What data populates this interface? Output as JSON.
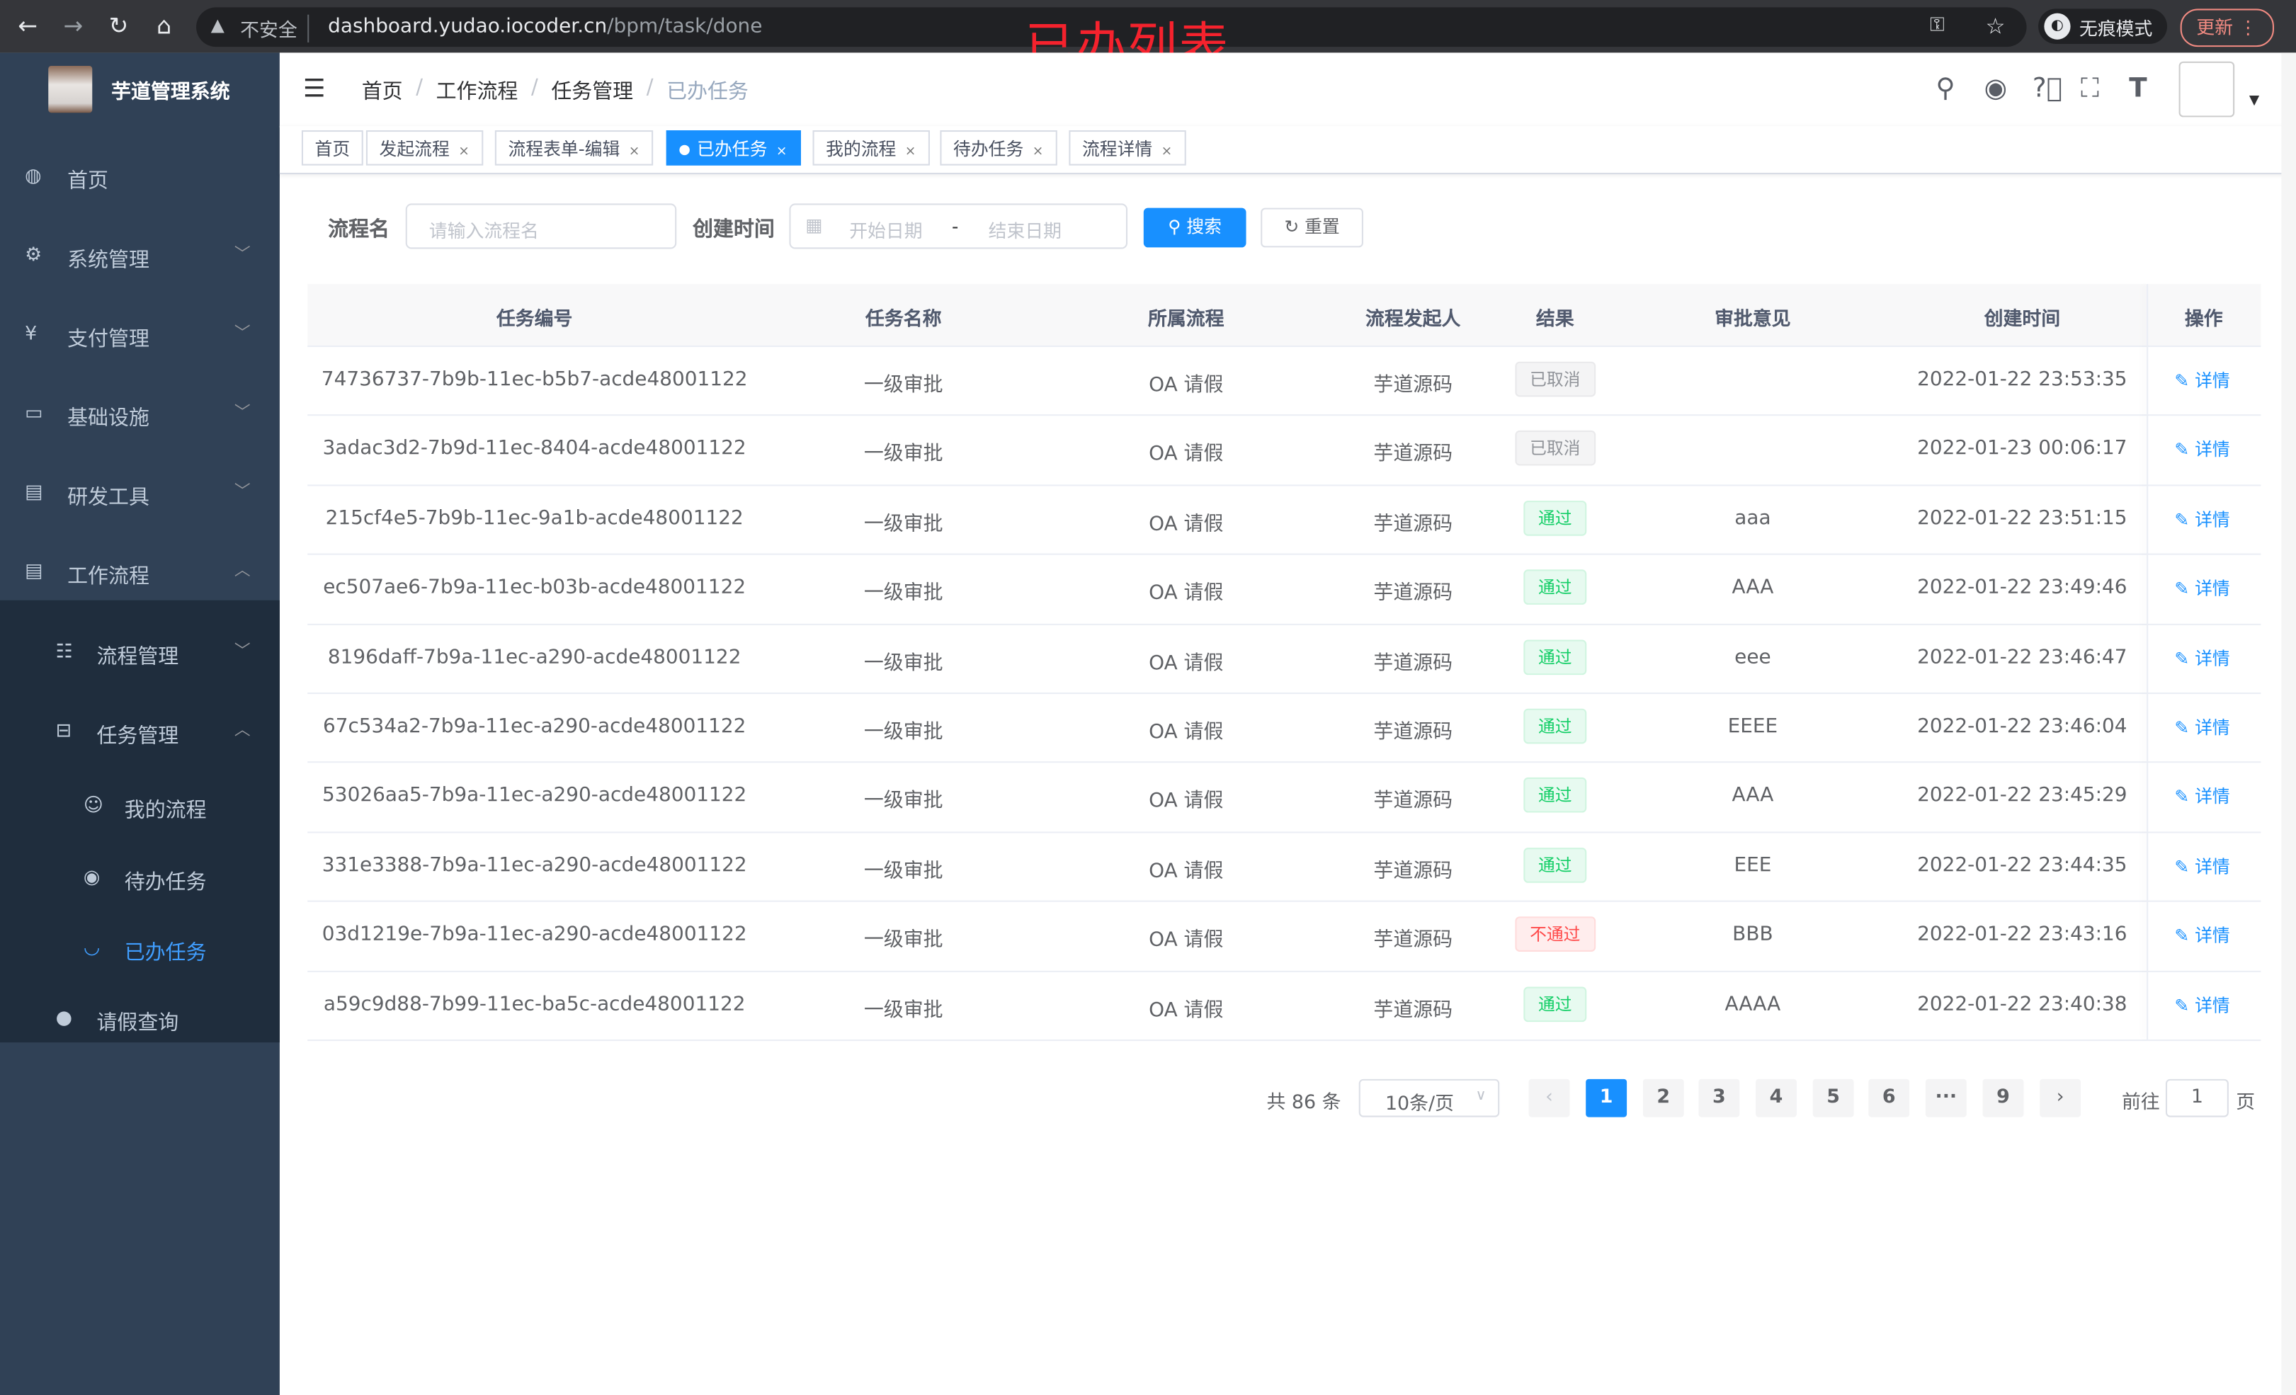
{
  "browser": {
    "security_label": "不安全",
    "url_host": "dashboard.yudao.iocoder.cn",
    "url_path": "/bpm/task/done",
    "incognito_label": "无痕模式",
    "update_label": "更新"
  },
  "annotation": "已办列表",
  "sidebar": {
    "brand": "芋道管理系统",
    "items": [
      {
        "label": "首页",
        "icon": "dashboard-icon"
      },
      {
        "label": "系统管理",
        "icon": "gear-icon"
      },
      {
        "label": "支付管理",
        "icon": "yen-icon"
      },
      {
        "label": "基础设施",
        "icon": "monitor-icon"
      },
      {
        "label": "研发工具",
        "icon": "toolbox-icon"
      },
      {
        "label": "工作流程",
        "icon": "toolbox-icon"
      }
    ],
    "sub_items": [
      {
        "label": "流程管理",
        "icon": "list-icon"
      },
      {
        "label": "任务管理",
        "icon": "tree-icon"
      },
      {
        "label": "我的流程",
        "icon": "chat-icon"
      },
      {
        "label": "待办任务",
        "icon": "eye-icon"
      },
      {
        "label": "已办任务",
        "icon": "eye-closed-icon",
        "active": true
      },
      {
        "label": "请假查询",
        "icon": "user-icon"
      }
    ]
  },
  "breadcrumb": [
    "首页",
    "工作流程",
    "任务管理",
    "已办任务"
  ],
  "tags": [
    {
      "label": "首页",
      "closable": false
    },
    {
      "label": "发起流程",
      "closable": true
    },
    {
      "label": "流程表单-编辑",
      "closable": true
    },
    {
      "label": "已办任务",
      "closable": true,
      "active": true
    },
    {
      "label": "我的流程",
      "closable": true
    },
    {
      "label": "待办任务",
      "closable": true
    },
    {
      "label": "流程详情",
      "closable": true
    }
  ],
  "search": {
    "name_label": "流程名",
    "name_placeholder": "请输入流程名",
    "time_label": "创建时间",
    "start_placeholder": "开始日期",
    "range_sep": "-",
    "end_placeholder": "结束日期",
    "search_button": "搜索",
    "reset_button": "重置"
  },
  "table": {
    "columns": [
      "任务编号",
      "任务名称",
      "所属流程",
      "流程发起人",
      "结果",
      "审批意见",
      "创建时间",
      "操作"
    ],
    "rows": [
      {
        "id": "74736737-7b9b-11ec-b5b7-acde48001122",
        "name": "一级审批",
        "process": "OA 请假",
        "starter": "芋道源码",
        "result": "已取消",
        "status": "cancel",
        "comment": "",
        "time": "2022-01-22 23:53:35",
        "action": "详情"
      },
      {
        "id": "3adac3d2-7b9d-11ec-8404-acde48001122",
        "name": "一级审批",
        "process": "OA 请假",
        "starter": "芋道源码",
        "result": "已取消",
        "status": "cancel",
        "comment": "",
        "time": "2022-01-23 00:06:17",
        "action": "详情"
      },
      {
        "id": "215cf4e5-7b9b-11ec-9a1b-acde48001122",
        "name": "一级审批",
        "process": "OA 请假",
        "starter": "芋道源码",
        "result": "通过",
        "status": "pass",
        "comment": "aaa",
        "time": "2022-01-22 23:51:15",
        "action": "详情"
      },
      {
        "id": "ec507ae6-7b9a-11ec-b03b-acde48001122",
        "name": "一级审批",
        "process": "OA 请假",
        "starter": "芋道源码",
        "result": "通过",
        "status": "pass",
        "comment": "AAA",
        "time": "2022-01-22 23:49:46",
        "action": "详情"
      },
      {
        "id": "8196daff-7b9a-11ec-a290-acde48001122",
        "name": "一级审批",
        "process": "OA 请假",
        "starter": "芋道源码",
        "result": "通过",
        "status": "pass",
        "comment": "eee",
        "time": "2022-01-22 23:46:47",
        "action": "详情"
      },
      {
        "id": "67c534a2-7b9a-11ec-a290-acde48001122",
        "name": "一级审批",
        "process": "OA 请假",
        "starter": "芋道源码",
        "result": "通过",
        "status": "pass",
        "comment": "EEEE",
        "time": "2022-01-22 23:46:04",
        "action": "详情"
      },
      {
        "id": "53026aa5-7b9a-11ec-a290-acde48001122",
        "name": "一级审批",
        "process": "OA 请假",
        "starter": "芋道源码",
        "result": "通过",
        "status": "pass",
        "comment": "AAA",
        "time": "2022-01-22 23:45:29",
        "action": "详情"
      },
      {
        "id": "331e3388-7b9a-11ec-a290-acde48001122",
        "name": "一级审批",
        "process": "OA 请假",
        "starter": "芋道源码",
        "result": "通过",
        "status": "pass",
        "comment": "EEE",
        "time": "2022-01-22 23:44:35",
        "action": "详情"
      },
      {
        "id": "03d1219e-7b9a-11ec-a290-acde48001122",
        "name": "一级审批",
        "process": "OA 请假",
        "starter": "芋道源码",
        "result": "不通过",
        "status": "reject",
        "comment": "BBB",
        "time": "2022-01-22 23:43:16",
        "action": "详情"
      },
      {
        "id": "a59c9d88-7b99-11ec-ba5c-acde48001122",
        "name": "一级审批",
        "process": "OA 请假",
        "starter": "芋道源码",
        "result": "通过",
        "status": "pass",
        "comment": "AAAA",
        "time": "2022-01-22 23:40:38",
        "action": "详情"
      }
    ]
  },
  "pagination": {
    "total_label": "共 86 条",
    "page_size": "10条/页",
    "pages": [
      "1",
      "2",
      "3",
      "4",
      "5",
      "6",
      "···",
      "9"
    ],
    "current": "1",
    "goto_label": "前往",
    "goto_value": "1",
    "page_suffix": "页"
  },
  "colors": {
    "accent": "#1890ff",
    "sidebar_bg": "#304156",
    "submenu_bg": "#1f2d3d",
    "pass": "#13ce66",
    "reject": "#ff4949",
    "cancel": "#909399"
  }
}
